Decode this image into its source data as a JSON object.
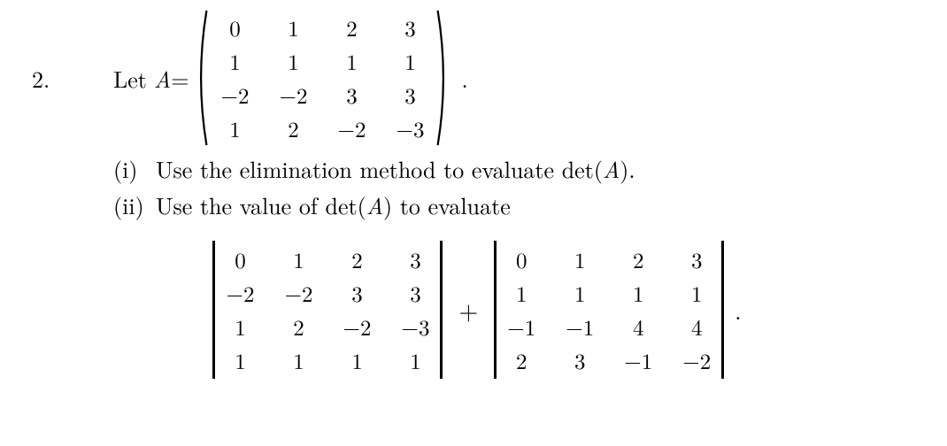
{
  "problem": {
    "number": "2.",
    "prefix": "Let ",
    "var": "A",
    "eq": " = ",
    "period_after_matrix": "."
  },
  "matrixA": {
    "rows": [
      [
        "0",
        "1",
        "2",
        "3"
      ],
      [
        "1",
        "1",
        "1",
        "1"
      ],
      [
        "−2",
        "−2",
        "3",
        "3"
      ],
      [
        "1",
        "2",
        "−2",
        "−3"
      ]
    ]
  },
  "parts": {
    "i_label": "(i)",
    "i_text": "Use the elimination method to evaluate det(A).",
    "ii_label": "(ii)",
    "ii_text": "Use the value of det(A) to evaluate"
  },
  "det1": {
    "rows": [
      [
        "0",
        "1",
        "2",
        "3"
      ],
      [
        "−2",
        "−2",
        "3",
        "3"
      ],
      [
        "1",
        "2",
        "−2",
        "−3"
      ],
      [
        "1",
        "1",
        "1",
        "1"
      ]
    ]
  },
  "det2": {
    "rows": [
      [
        "0",
        "1",
        "2",
        "3"
      ],
      [
        "1",
        "1",
        "1",
        "1"
      ],
      [
        "−1",
        "−1",
        "4",
        "4"
      ],
      [
        "2",
        "3",
        "−1",
        "−2"
      ]
    ]
  },
  "ops": {
    "plus": "+",
    "final_period": "."
  }
}
